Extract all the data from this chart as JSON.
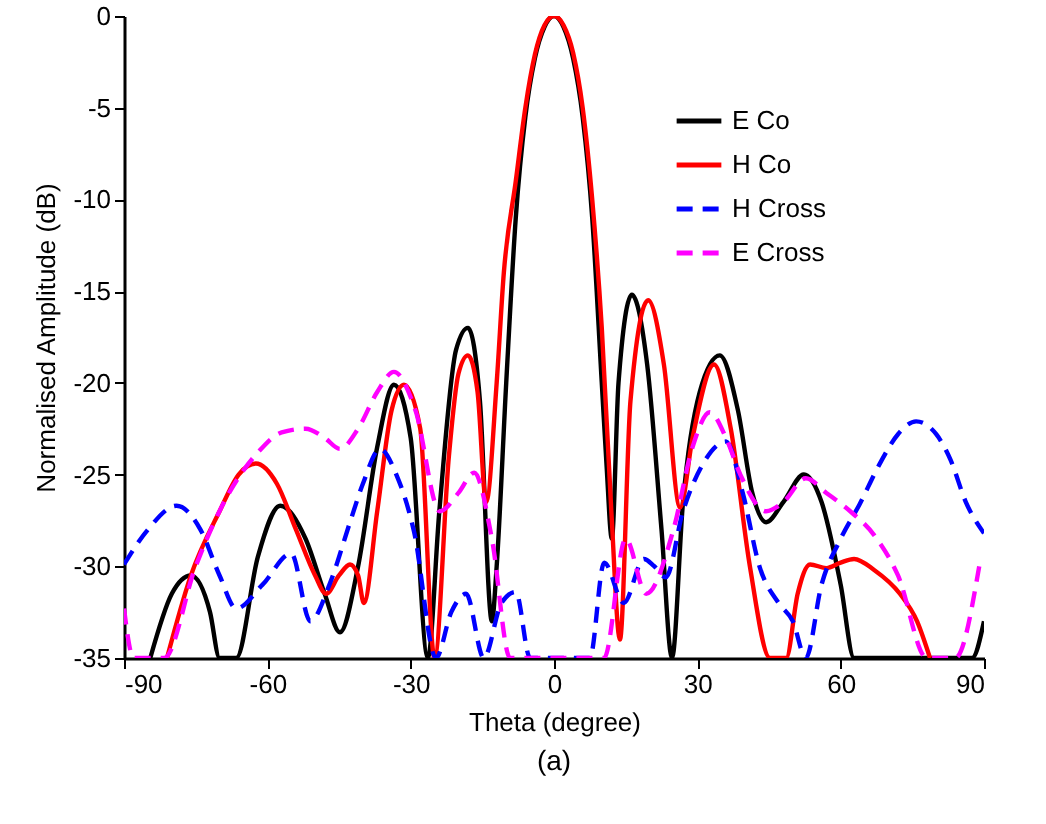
{
  "chart_data": {
    "type": "line",
    "xlabel": "Theta (degree)",
    "ylabel": "Normalised Amplitude (dB)",
    "annotations": [
      "(a)"
    ],
    "xlim": [
      -90,
      90
    ],
    "xticks": [
      -90,
      -60,
      -30,
      0,
      30,
      60,
      90
    ],
    "ylim": [
      -35,
      0
    ],
    "yticks": [
      -35,
      -30,
      -25,
      -20,
      -15,
      -10,
      -5,
      0
    ],
    "grid": false,
    "legend": "top right",
    "series": [
      {
        "name": "E Co",
        "color": "#000000",
        "line_style": "solid",
        "x": [
          -84.5,
          -80,
          -76,
          -72,
          -70,
          -66.5,
          -62,
          -57.3,
          -52,
          -48,
          -44.8,
          -41,
          -37,
          -33.5,
          -30,
          -26.4,
          -24,
          -20.5,
          -18,
          -15.5,
          -13,
          -12,
          -10,
          -8,
          -6,
          -4,
          -2,
          0,
          2,
          4,
          6,
          8,
          10,
          11,
          12.1,
          13.5,
          16.3,
          19.5,
          22.5,
          24.7,
          27,
          30.5,
          34.7,
          38.5,
          41.5,
          44.4,
          48,
          52.3,
          56,
          60,
          62.8,
          87.5,
          90
        ],
        "values": [
          -35,
          -31.5,
          -30.5,
          -32.5,
          -35,
          -35,
          -29.5,
          -26.7,
          -28.5,
          -31.5,
          -33.6,
          -30,
          -23.5,
          -20.1,
          -23,
          -35,
          -27,
          -18.2,
          -17,
          -21,
          -33,
          -30,
          -20,
          -11,
          -5.5,
          -2.3,
          -0.6,
          0,
          -0.6,
          -2.3,
          -5.5,
          -11,
          -20,
          -24.5,
          -28.5,
          -20,
          -15.2,
          -19,
          -28,
          -35,
          -26.5,
          -20.5,
          -18.5,
          -21.5,
          -26,
          -27.6,
          -26.5,
          -25,
          -26.5,
          -31,
          -35,
          -35,
          -33
        ]
      },
      {
        "name": "H Co",
        "color": "#ff0000",
        "line_style": "solid",
        "x": [
          -81,
          -76,
          -70,
          -66,
          -62.4,
          -58,
          -54,
          -50,
          -47.7,
          -45,
          -42.7,
          -41,
          -39.8,
          -37,
          -34,
          -31.4,
          -28,
          -25,
          -22,
          -20,
          -18,
          -16,
          -14.2,
          -12,
          -10.5,
          -8,
          -6,
          -4,
          -2,
          0,
          2,
          4,
          6,
          8,
          10,
          12,
          13.8,
          16,
          19.7,
          23,
          26.4,
          29,
          33.5,
          37,
          41,
          45.2,
          48.6,
          51,
          53.6,
          57,
          60,
          62.8,
          67,
          72.4,
          76,
          78.7
        ],
        "values": [
          -35,
          -30.5,
          -27,
          -25,
          -24.4,
          -25.5,
          -28,
          -30.5,
          -31.5,
          -30.5,
          -29.9,
          -30.5,
          -32,
          -27,
          -21.5,
          -20.1,
          -22.5,
          -35,
          -24,
          -19.5,
          -18.5,
          -20.5,
          -26.5,
          -20,
          -14,
          -9,
          -5,
          -2.1,
          -0.5,
          0,
          -0.5,
          -2,
          -5,
          -10,
          -17,
          -27,
          -34,
          -21,
          -15.5,
          -19,
          -26.8,
          -23,
          -19,
          -22.5,
          -30,
          -35,
          -35,
          -31.5,
          -29.9,
          -30.1,
          -29.8,
          -29.6,
          -30.2,
          -31.5,
          -33,
          -35
        ]
      },
      {
        "name": "H Cross",
        "color": "#0000ff",
        "line_style": "dashed",
        "x": [
          -90,
          -85,
          -79,
          -74,
          -70,
          -66.5,
          -61,
          -55,
          -51,
          -47,
          -42.7,
          -40,
          -36.4,
          -33,
          -29.3,
          -24.7,
          -21.5,
          -18.4,
          -14.7,
          -11,
          -8,
          -5,
          7.5,
          10.5,
          14.6,
          18.8,
          21,
          23.4,
          27,
          31,
          36,
          39.5,
          43,
          47,
          50,
          52.7,
          56,
          60,
          64,
          68,
          72,
          75.8,
          80,
          83,
          86.2,
          90
        ],
        "values": [
          -29.9,
          -28,
          -26.7,
          -28,
          -30.5,
          -32.3,
          -31,
          -29.3,
          -33,
          -31,
          -27.6,
          -25.5,
          -23.6,
          -25,
          -28.1,
          -35,
          -32.5,
          -31.5,
          -35,
          -32,
          -31.4,
          -35,
          -35,
          -29.8,
          -32,
          -29.6,
          -30,
          -30.6,
          -27,
          -24.5,
          -23.2,
          -26,
          -30,
          -32,
          -33,
          -35,
          -31,
          -28.5,
          -26.6,
          -24.5,
          -22.8,
          -22.1,
          -22.8,
          -24.2,
          -26.5,
          -28.2
        ]
      },
      {
        "name": "E Cross",
        "color": "#ff00ff",
        "line_style": "dashed",
        "x": [
          -90,
          -88,
          -81.6,
          -75,
          -68,
          -62,
          -57,
          -52,
          -48,
          -44.8,
          -41,
          -37,
          -33.5,
          -29,
          -23.9,
          -20,
          -16.7,
          -13,
          -9.2,
          10.5,
          15,
          19.3,
          25,
          29,
          32.6,
          36,
          39,
          44.4,
          48,
          52.7,
          57,
          62,
          67,
          72,
          78,
          84,
          89
        ],
        "values": [
          -32.3,
          -35,
          -35,
          -30,
          -26,
          -23.8,
          -22.7,
          -22.5,
          -23,
          -23.6,
          -22.5,
          -20.5,
          -19.4,
          -21.5,
          -27,
          -26,
          -24.9,
          -28.5,
          -35,
          -35,
          -28.5,
          -31.5,
          -28,
          -23.5,
          -21.6,
          -23,
          -25,
          -27,
          -26.5,
          -25.2,
          -26,
          -27,
          -28.3,
          -30.5,
          -35,
          -35,
          -30
        ]
      }
    ]
  }
}
